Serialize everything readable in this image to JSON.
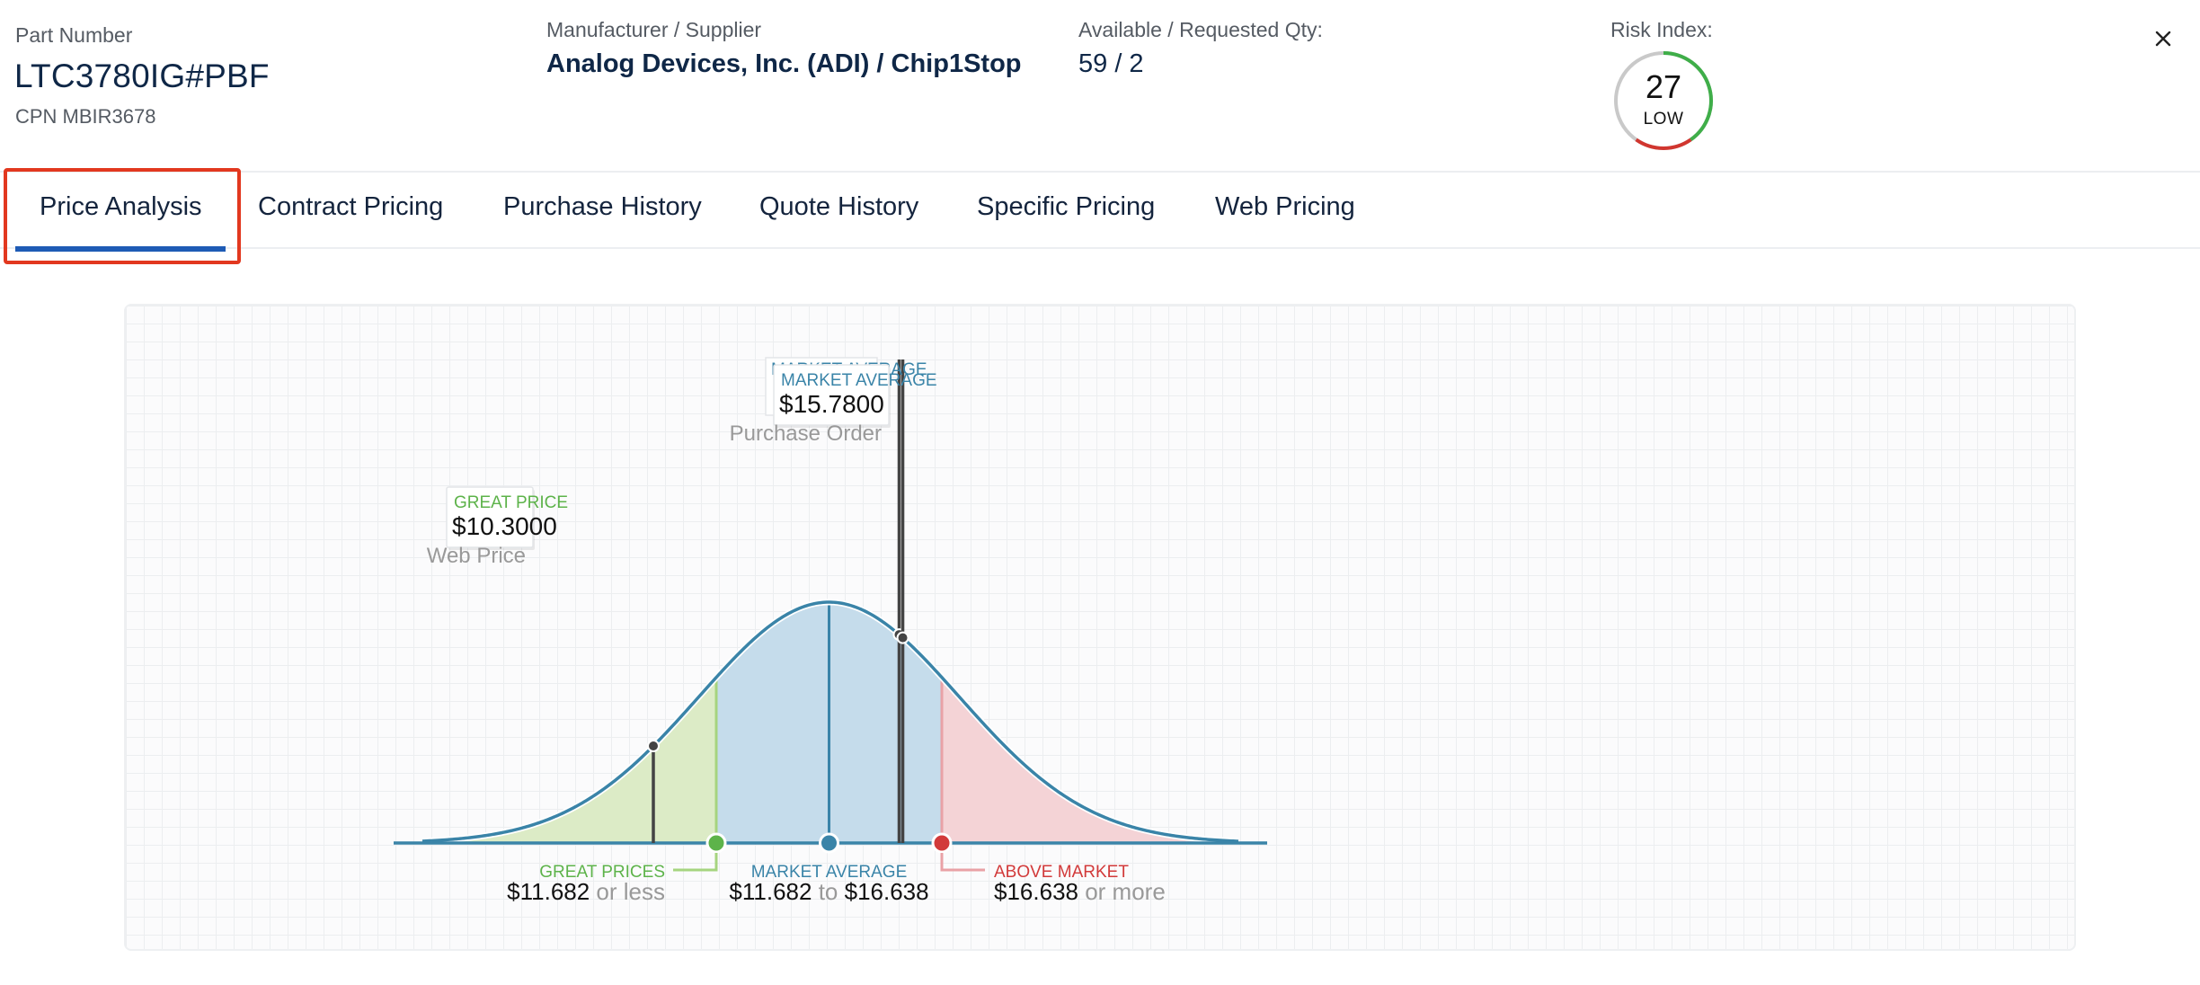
{
  "header": {
    "part_number_label": "Part Number",
    "part_number": "LTC3780IG#PBF",
    "cpn": "CPN MBIR3678",
    "manufacturer_label": "Manufacturer / Supplier",
    "manufacturer_value": "Analog Devices, Inc. (ADI) / Chip1Stop",
    "qty_label": "Available / Requested Qty:",
    "qty_value": "59 / 2",
    "risk_label": "Risk Index:",
    "risk_score": "27",
    "risk_level": "LOW",
    "close_icon": "close-icon"
  },
  "tabs": [
    {
      "label": "Price Analysis",
      "active": true
    },
    {
      "label": "Contract Pricing",
      "active": false
    },
    {
      "label": "Purchase History",
      "active": false
    },
    {
      "label": "Quote History",
      "active": false
    },
    {
      "label": "Specific Pricing",
      "active": false
    },
    {
      "label": "Web Pricing",
      "active": false
    }
  ],
  "chart_data": {
    "type": "area",
    "distribution": "normal",
    "zones": [
      {
        "name": "GREAT PRICES",
        "from": null,
        "to": 11.682,
        "range_text": "$11.682",
        "suffix": "or less",
        "color": "#5db34a",
        "fill": "#dcebc6"
      },
      {
        "name": "MARKET AVERAGE",
        "from": 11.682,
        "to": 16.638,
        "range_from_text": "$11.682",
        "connector": "to",
        "range_to_text": "$16.638",
        "color": "#3a84a8",
        "fill": "#c5dceb"
      },
      {
        "name": "ABOVE MARKET",
        "from": 16.638,
        "to": null,
        "range_text": "$16.638",
        "suffix": "or more",
        "color": "#d23a3a",
        "fill": "#f4d3d6"
      }
    ],
    "markers": [
      {
        "category": "GREAT PRICE",
        "price": 10.3,
        "price_text": "$10.3000",
        "source": "Web Price",
        "color": "#5db34a"
      },
      {
        "category": "MARKET AVERAGE",
        "price": 15.7,
        "price_text": "$15.7",
        "source": "",
        "color": "#3a84a8",
        "partially_hidden": true
      },
      {
        "category": "MARKET AVERAGE",
        "price": 15.78,
        "price_text": "$15.7800",
        "source": "Purchase Order",
        "color": "#3a84a8"
      }
    ],
    "mean": 14.16,
    "colors": {
      "curve": "#3a84a8",
      "axis": "#3a84a8",
      "marker_line": "#444444"
    }
  }
}
